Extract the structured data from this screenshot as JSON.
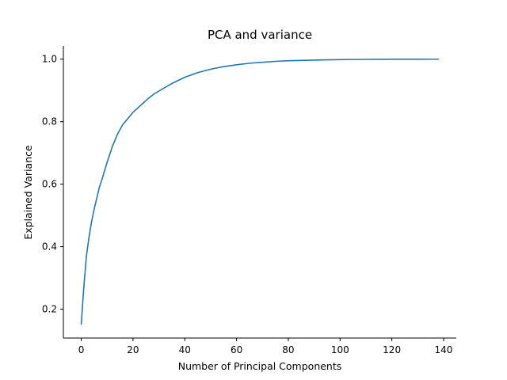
{
  "chart_data": {
    "type": "line",
    "title": "PCA and variance",
    "xlabel": "Number of Principal Components",
    "ylabel": "Explained Variance",
    "xlim": [
      -6.9,
      144.9
    ],
    "ylim": [
      0.1076,
      1.0424
    ],
    "xticks": [
      0,
      20,
      40,
      60,
      80,
      100,
      120,
      140
    ],
    "yticks": [
      0.2,
      0.4,
      0.6,
      0.8,
      1.0
    ],
    "ytick_labels": [
      "0.2",
      "0.4",
      "0.6",
      "0.8",
      "1.0"
    ],
    "grid": false,
    "legend": "none",
    "spines": [
      "left",
      "bottom"
    ],
    "series": [
      {
        "color": "#1f77b4",
        "x": [
          0,
          1,
          2,
          3,
          4,
          5,
          6,
          7,
          8,
          10,
          12,
          14,
          16,
          18,
          20,
          22,
          24,
          26,
          28,
          30,
          35,
          40,
          45,
          50,
          55,
          60,
          65,
          70,
          75,
          80,
          85,
          90,
          95,
          100,
          105,
          110,
          115,
          120,
          125,
          130,
          135,
          138
        ],
        "y": [
          0.152,
          0.27,
          0.37,
          0.43,
          0.48,
          0.52,
          0.555,
          0.59,
          0.615,
          0.67,
          0.72,
          0.76,
          0.79,
          0.81,
          0.83,
          0.845,
          0.86,
          0.875,
          0.888,
          0.898,
          0.922,
          0.942,
          0.957,
          0.968,
          0.976,
          0.982,
          0.987,
          0.99,
          0.993,
          0.995,
          0.996,
          0.997,
          0.998,
          0.9985,
          0.999,
          0.9993,
          0.9995,
          0.9997,
          0.9998,
          0.9999,
          1.0,
          1.0
        ]
      }
    ]
  }
}
